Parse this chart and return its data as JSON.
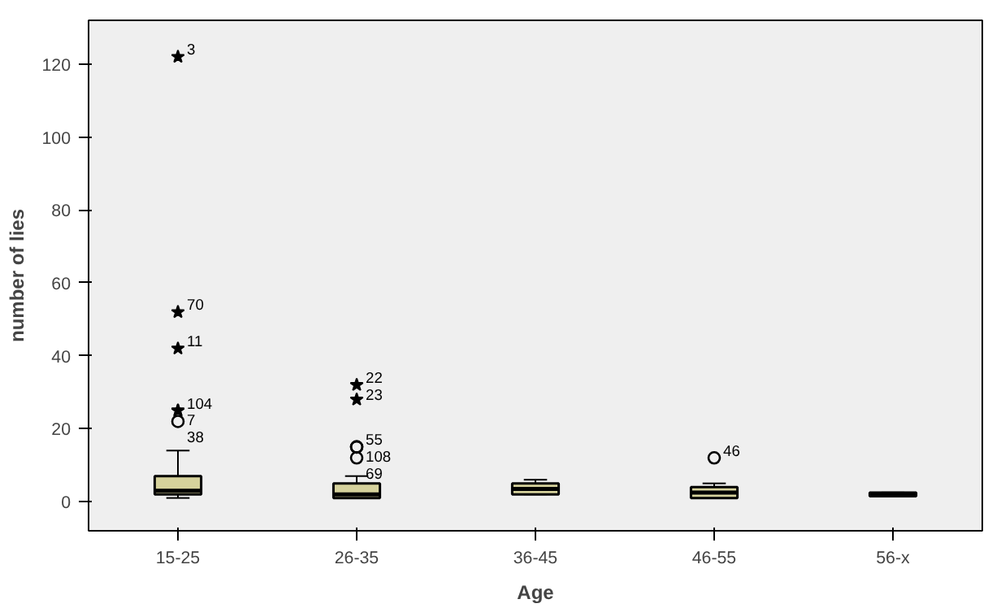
{
  "chart_data": {
    "type": "box",
    "xlabel": "Age",
    "ylabel": "number of lies",
    "categories": [
      "15-25",
      "26-35",
      "36-45",
      "46-55",
      "56-x"
    ],
    "color": "#d6d29c",
    "boxes": [
      {
        "low": 1,
        "q1": 2,
        "median": 3,
        "q3": 7,
        "high": 14,
        "outliers": [
          122,
          52,
          42,
          25,
          25,
          22
        ]
      },
      {
        "low": 1,
        "q1": 1,
        "median": 2,
        "q3": 5,
        "high": 7,
        "outliers": [
          32,
          28,
          15,
          15,
          12
        ]
      },
      {
        "low": 2,
        "q1": 2,
        "median": 3.5,
        "q3": 5,
        "high": 6
      },
      {
        "low": 1,
        "q1": 1,
        "median": 2.5,
        "q3": 4,
        "high": 5,
        "outliers": [
          12
        ]
      },
      {
        "low": 1.5,
        "q1": 1.5,
        "median": 2,
        "q3": 2.5,
        "high": 2.5
      }
    ],
    "ylim": [
      -8,
      132
    ],
    "yticks": [
      0,
      20,
      40,
      60,
      80,
      100,
      120
    ],
    "grid": false,
    "annotations": [
      "3",
      "70",
      "11",
      "104",
      "7",
      "38",
      "22",
      "23",
      "55",
      "108",
      "69",
      "46"
    ]
  }
}
